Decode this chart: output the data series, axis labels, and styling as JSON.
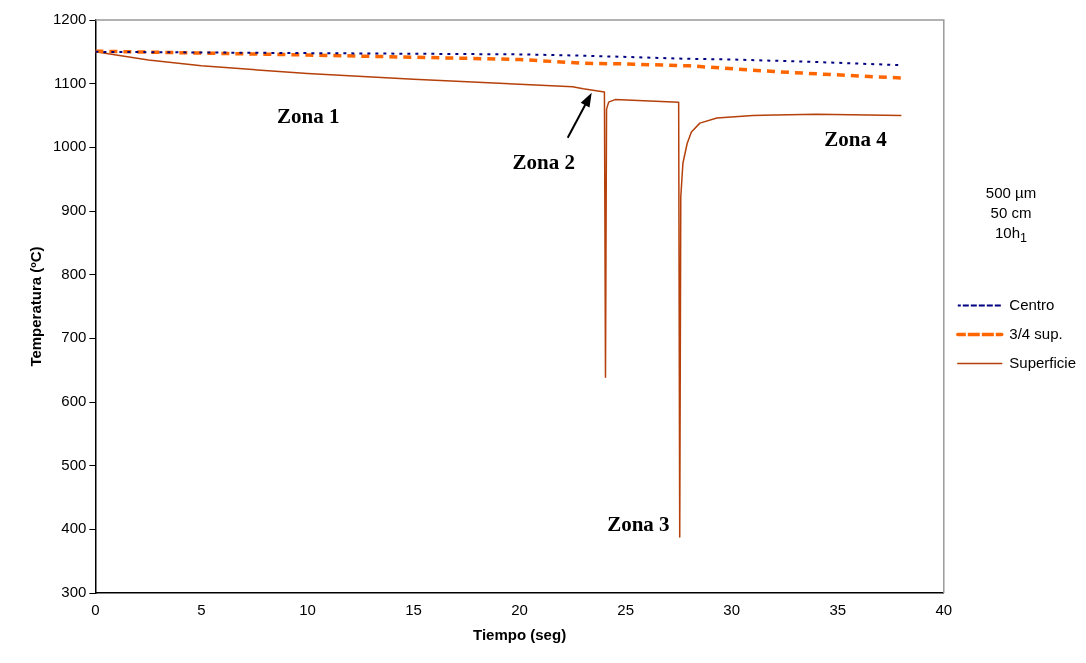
{
  "chart_data": {
    "type": "line",
    "xlabel": "Tiempo (seg)",
    "ylabel": "Temperatura (ºC)",
    "xlim": [
      0,
      40
    ],
    "xticks": [
      0,
      5,
      10,
      15,
      20,
      25,
      30,
      35,
      40
    ],
    "ylim": [
      300,
      1200
    ],
    "yticks": [
      300,
      400,
      500,
      600,
      700,
      800,
      900,
      1000,
      1100,
      1200
    ],
    "grid": false,
    "legend": "right",
    "marker": "none",
    "series": [
      {
        "name": "Centro",
        "color": "#000080",
        "line_style": "dotted",
        "x": [
          0,
          10,
          20,
          23,
          28,
          30,
          34,
          38
        ],
        "values": [
          1150,
          1148,
          1146,
          1144,
          1139,
          1138,
          1134,
          1129
        ]
      },
      {
        "name": "3/4 sup.",
        "color": "#ff6600",
        "line_style": "dashed",
        "x": [
          0,
          10,
          20,
          23,
          25,
          28,
          32,
          36,
          38
        ],
        "values": [
          1151,
          1145,
          1138,
          1132,
          1131,
          1128,
          1119,
          1112,
          1109
        ]
      },
      {
        "name": "Superficie",
        "color": "#b5400a",
        "line_style": "solid",
        "x": [
          0,
          2.5,
          5,
          10,
          15,
          20,
          22.5,
          23,
          24,
          24.05,
          24.1,
          24.2,
          24.5,
          27.5,
          27.55,
          27.6,
          27.7,
          27.9,
          28.1,
          28.5,
          29.3,
          31,
          34,
          38
        ],
        "values": [
          1150,
          1137,
          1128,
          1116,
          1107,
          1099,
          1095,
          1092,
          1087,
          639,
          1060,
          1071,
          1075,
          1071,
          388,
          922,
          975,
          1006,
          1024,
          1038,
          1046,
          1050,
          1052,
          1050
        ]
      }
    ],
    "annotations": [
      "Zona 1",
      {
        "text": "Zona 2",
        "x": 23.4,
        "y": 1089
      },
      "Zona 3",
      "Zona 4",
      "500 µm",
      "50 cm",
      "10h$_{1}$"
    ]
  }
}
